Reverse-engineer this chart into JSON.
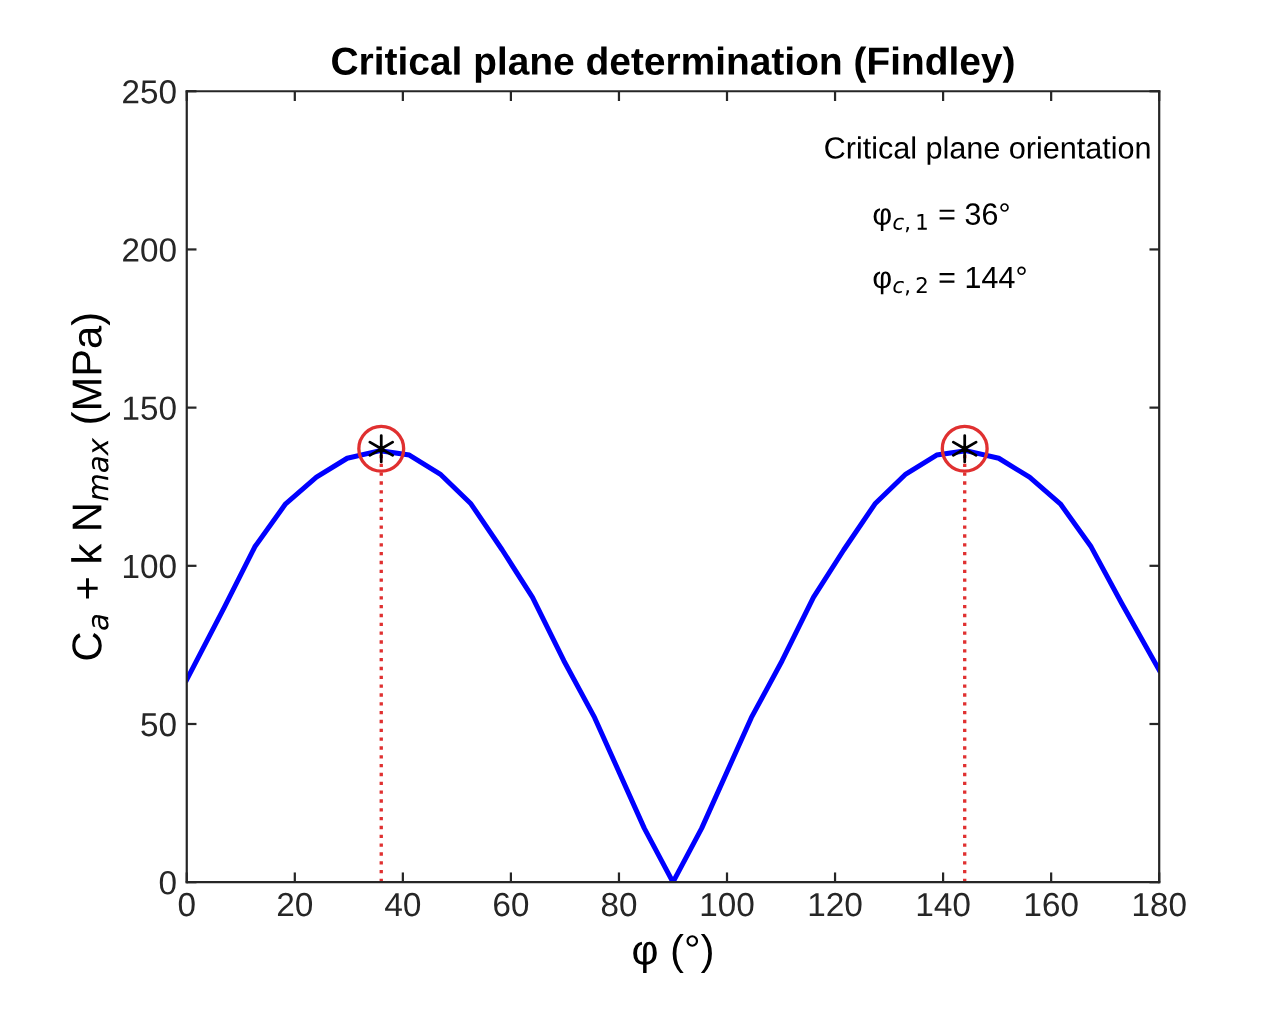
{
  "chart_data": {
    "type": "line",
    "title": "Critical plane determination (Findley)",
    "xlabel": "φ (°)",
    "ylabel": "C$_{a}$ + k N$_{max}$ (MPa)",
    "xlim": [
      0,
      180
    ],
    "ylim": [
      0,
      250
    ],
    "xticks": [
      0,
      20,
      40,
      60,
      80,
      100,
      120,
      140,
      160,
      180
    ],
    "yticks": [
      0,
      50,
      100,
      150,
      200,
      250
    ],
    "grid": false,
    "series": [
      {
        "color": "#0000ff",
        "line_style": "solid",
        "marker": "none",
        "x": [
          0,
          6.9,
          12.6,
          18.3,
          24,
          29.7,
          35.8,
          41.2,
          46.9,
          52.6,
          58.4,
          64,
          69.8,
          75.5,
          84.7,
          90,
          95.3,
          104.5,
          110.2,
          116,
          121.6,
          127.4,
          133.1,
          138.8,
          144.2,
          150.3,
          156,
          161.7,
          167.4,
          173.1,
          180
        ],
        "values": [
          64,
          86.7,
          106,
          119.6,
          128,
          134,
          136.4,
          135,
          129,
          119.6,
          105,
          90,
          70,
          52,
          17,
          0,
          17,
          52,
          70,
          90,
          105,
          119.6,
          129,
          135,
          136.4,
          134,
          128,
          119.6,
          106,
          88,
          67
        ]
      },
      {
        "type": "line",
        "color": "#e03030",
        "line_style": "dotted",
        "marker": "none",
        "x": [
          36,
          36
        ],
        "values": [
          0,
          137
        ]
      },
      {
        "type": "line",
        "color": "#e03030",
        "line_style": "dotted",
        "marker": "none",
        "x": [
          144,
          144
        ],
        "values": [
          0,
          137
        ]
      },
      {
        "type": "scatter",
        "color": "#e03030",
        "marker": "circle",
        "x": [
          36,
          144
        ],
        "values": [
          137,
          137
        ]
      },
      {
        "type": "scatter",
        "color": "#000000",
        "marker": "cross",
        "x": [
          36,
          144
        ],
        "values": [
          137,
          137
        ]
      }
    ],
    "annotations": [
      "Critical plane orientation",
      "φ$_{c,1}$ = 36°",
      "φ$_{c,2}$ = 144°"
    ]
  }
}
